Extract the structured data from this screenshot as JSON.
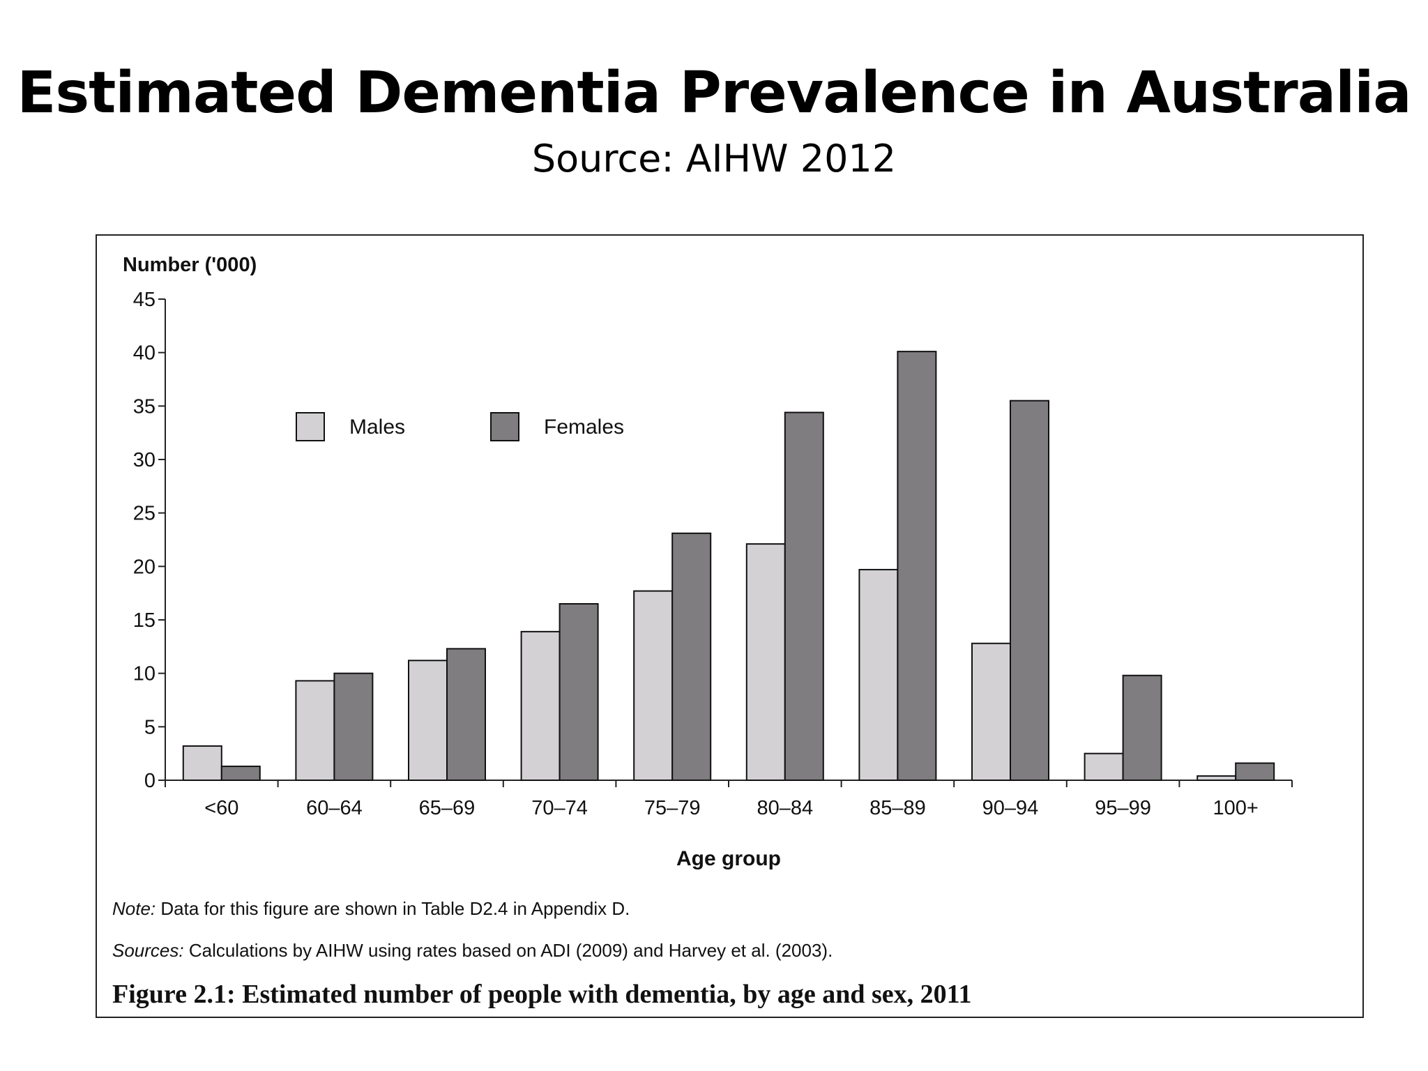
{
  "slide": {
    "title": "Estimated Dementia Prevalence in Australia",
    "subtitle": "Source: AIHW 2012"
  },
  "figure": {
    "note_label": "Note:",
    "note_text": " Data for this figure are shown in Table D2.4 in Appendix D.",
    "sources_label": "Sources:",
    "sources_text": " Calculations by AIHW using rates based on ADI (2009) and Harvey et al. (2003).",
    "caption": "Figure 2.1: Estimated number of people with dementia, by age and sex, 2011"
  },
  "chart_data": {
    "type": "bar",
    "ylabel": "Number ('000)",
    "xlabel": "Age group",
    "ylim": [
      0,
      45
    ],
    "yticks": [
      0,
      5,
      10,
      15,
      20,
      25,
      30,
      35,
      40,
      45
    ],
    "categories": [
      "<60",
      "60–64",
      "65–69",
      "70–74",
      "75–79",
      "80–84",
      "85–89",
      "90–94",
      "95–99",
      "100+"
    ],
    "series": [
      {
        "name": "Males",
        "color": "#d3d1d4",
        "values": [
          3.2,
          9.3,
          11.2,
          13.9,
          17.7,
          22.1,
          19.7,
          12.8,
          2.5,
          0.4
        ]
      },
      {
        "name": "Females",
        "color": "#7f7d80",
        "values": [
          1.3,
          10.0,
          12.3,
          16.5,
          23.1,
          34.4,
          40.1,
          35.5,
          9.8,
          1.6
        ]
      }
    ],
    "legend_position": "top-left",
    "grid": false
  }
}
